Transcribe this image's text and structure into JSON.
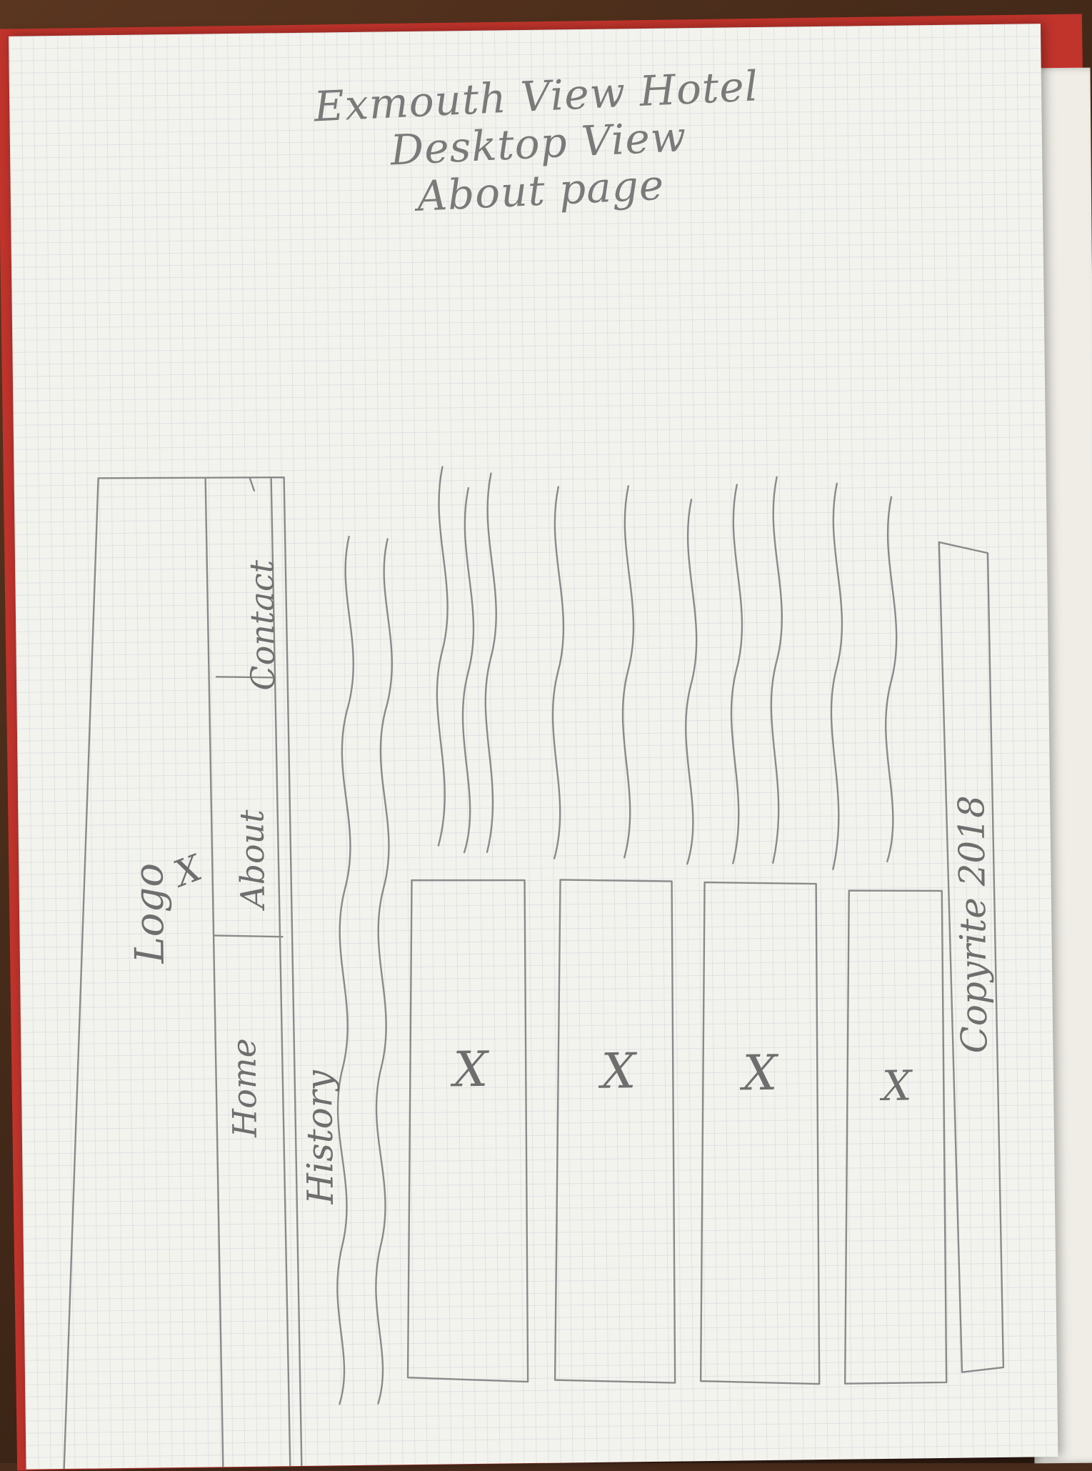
{
  "sketch": {
    "title": {
      "lines": [
        "Exmouth View Hotel",
        "Desktop View",
        "About page"
      ]
    },
    "header": {
      "logo_label": "Logo",
      "nav_items": [
        "Home",
        "About",
        "Contact"
      ]
    },
    "section_heading": "History",
    "image_placeholder_marks": [
      "X",
      "X",
      "X",
      "X"
    ],
    "logo_mark": "X",
    "footer": {
      "copyright": "Copyrite 2018"
    }
  }
}
